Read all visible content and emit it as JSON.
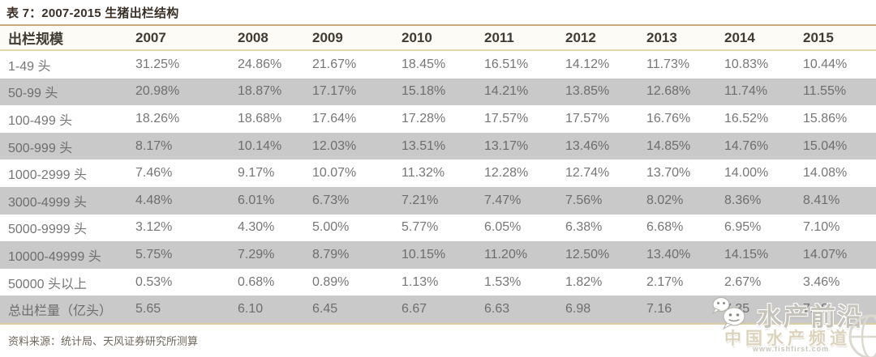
{
  "title": "表 7：2007-2015 生猪出栏结构",
  "table": {
    "header": [
      "出栏规模",
      "2007",
      "2008",
      "2009",
      "2010",
      "2011",
      "2012",
      "2013",
      "2014",
      "2015"
    ],
    "rows": [
      {
        "label": "1-49 头",
        "values": [
          "31.25%",
          "24.86%",
          "21.67%",
          "18.45%",
          "16.51%",
          "14.12%",
          "11.73%",
          "10.83%",
          "10.44%"
        ]
      },
      {
        "label": "50-99 头",
        "values": [
          "20.98%",
          "18.87%",
          "17.17%",
          "15.18%",
          "14.21%",
          "13.85%",
          "12.68%",
          "11.74%",
          "11.55%"
        ]
      },
      {
        "label": "100-499 头",
        "values": [
          "18.26%",
          "18.68%",
          "17.64%",
          "17.28%",
          "17.57%",
          "17.57%",
          "16.76%",
          "16.52%",
          "15.86%"
        ]
      },
      {
        "label": "500-999 头",
        "values": [
          "8.17%",
          "10.14%",
          "12.03%",
          "13.51%",
          "13.17%",
          "13.46%",
          "14.85%",
          "14.76%",
          "15.04%"
        ]
      },
      {
        "label": "1000-2999 头",
        "values": [
          "7.46%",
          "9.17%",
          "10.07%",
          "11.32%",
          "12.28%",
          "12.74%",
          "13.70%",
          "14.00%",
          "14.08%"
        ]
      },
      {
        "label": "3000-4999 头",
        "values": [
          "4.48%",
          "6.01%",
          "6.73%",
          "7.21%",
          "7.47%",
          "7.56%",
          "8.02%",
          "8.36%",
          "8.41%"
        ]
      },
      {
        "label": "5000-9999 头",
        "values": [
          "3.12%",
          "4.30%",
          "5.00%",
          "5.77%",
          "6.05%",
          "6.38%",
          "6.68%",
          "6.95%",
          "7.10%"
        ]
      },
      {
        "label": "10000-49999 头",
        "values": [
          "5.75%",
          "7.29%",
          "8.79%",
          "10.15%",
          "11.20%",
          "12.50%",
          "13.40%",
          "14.15%",
          "14.07%"
        ]
      },
      {
        "label": "50000 头以上",
        "values": [
          "0.53%",
          "0.68%",
          "0.89%",
          "1.13%",
          "1.53%",
          "1.82%",
          "2.17%",
          "2.67%",
          "3.46%"
        ]
      },
      {
        "label": "总出栏量（亿头）",
        "values": [
          "5.65",
          "6.10",
          "6.45",
          "6.67",
          "6.63",
          "6.98",
          "7.16",
          "7.35",
          "7.08"
        ]
      }
    ]
  },
  "footer": {
    "source": "资料来源：统计局、天风证券研究所测算"
  },
  "watermark": {
    "icon": "wechat-icon",
    "line1": "水产前沿",
    "line2": "中国水产频道",
    "url": "www.fishfirst.com"
  },
  "colors": {
    "title_text": "#3a3028",
    "header_text": "#403b33",
    "data_text": "#767676",
    "alt_row_bg": "#c9c9c9",
    "rule_top": "#c9a97c",
    "rule_header": "#e5d7ac",
    "rule_bottom": "#d9cda1",
    "watermark_text": "#c6c3ba"
  }
}
